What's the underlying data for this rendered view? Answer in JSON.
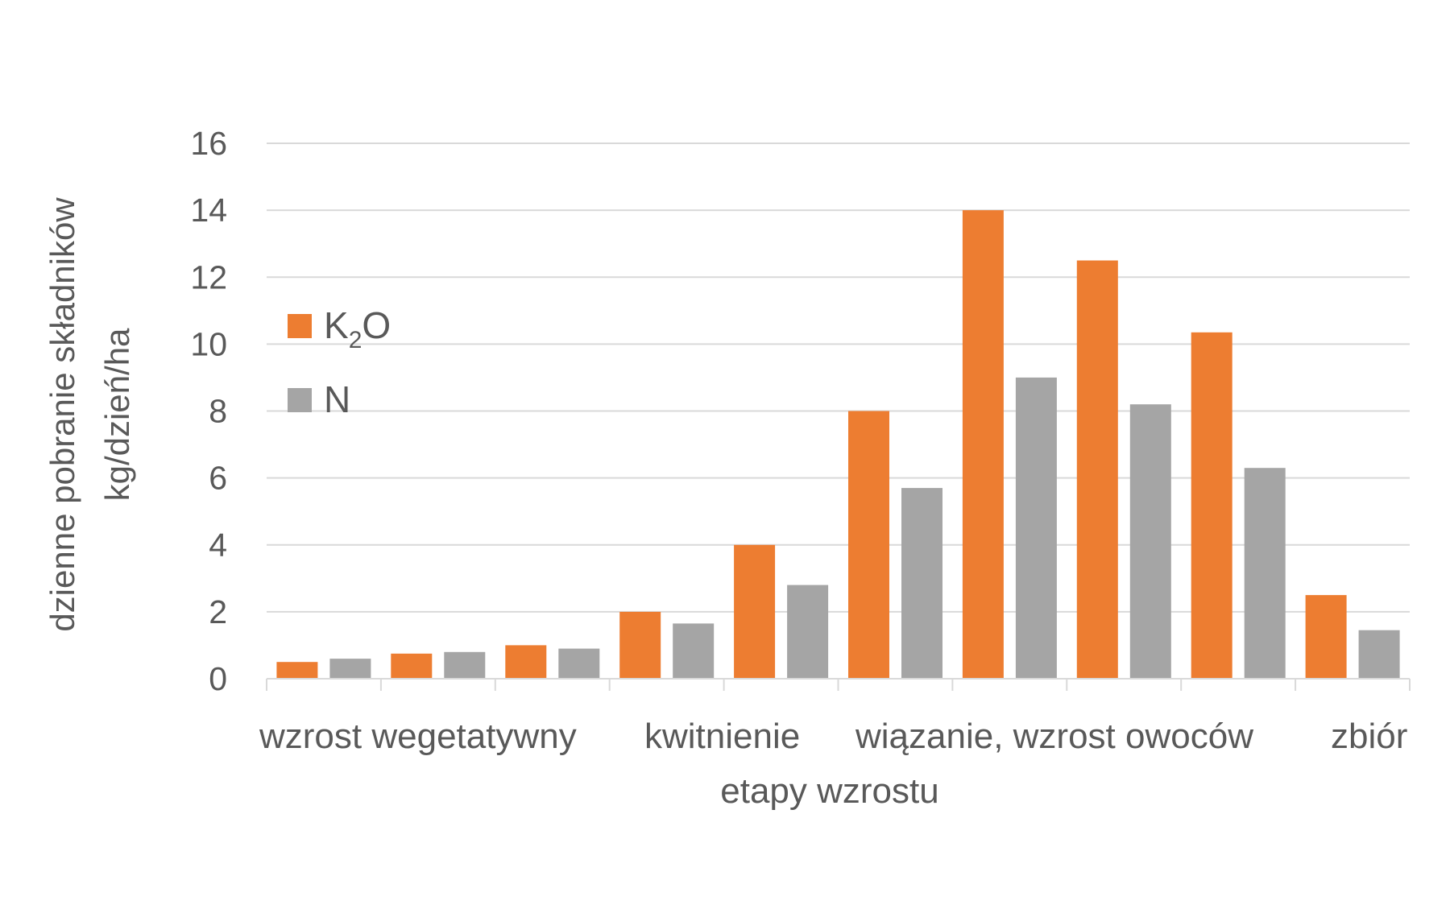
{
  "chart_data": {
    "type": "bar",
    "title": "",
    "ylabel_lines": [
      "dzienne pobranie składników",
      "kg/dzień/ha"
    ],
    "xlabel": "etapy wzrostu",
    "x_stage_labels": [
      "wzrost wegetatywny",
      "kwitnienie",
      "wiązanie, wzrost owoców",
      "zbiór"
    ],
    "y_ticks": [
      "0",
      "2",
      "4",
      "6",
      "8",
      "10",
      "12",
      "14",
      "16"
    ],
    "ylim": [
      0,
      16
    ],
    "grid": true,
    "legend_position": "left",
    "n_groups": 10,
    "series": [
      {
        "name": "K2O",
        "name_base": "K",
        "name_sub": "2",
        "name_tail": "O",
        "color": "#ED7D31",
        "values": [
          0.5,
          0.75,
          1.0,
          2.0,
          4.0,
          8.0,
          14.0,
          12.5,
          10.35,
          2.5
        ]
      },
      {
        "name": "N",
        "color": "#A5A5A5",
        "values": [
          0.6,
          0.8,
          0.9,
          1.65,
          2.8,
          5.7,
          9.0,
          8.2,
          6.3,
          1.45
        ]
      }
    ]
  }
}
